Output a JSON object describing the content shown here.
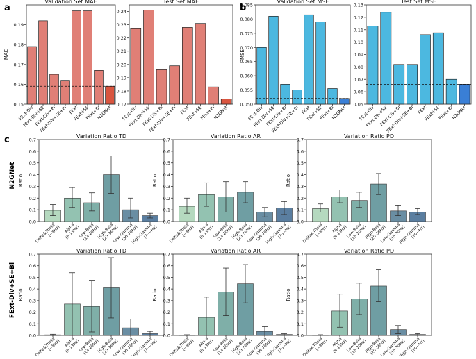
{
  "chart_data": [
    {
      "type": "bar",
      "panel": "a",
      "title": "Validation Set MAE",
      "ylabel": "MAE",
      "ylim": [
        0.15,
        0.2
      ],
      "yticks": [
        "0.15",
        "0.16",
        "0.17",
        "0.18",
        "0.19"
      ],
      "categories": [
        "FExt-Div",
        "FExt-Div+SE",
        "FExt-Div+Bi",
        "FExt-Div+SE+Bi",
        "FExt",
        "FExt+SE",
        "FExt+Bi",
        "N2GNet"
      ],
      "values": [
        0.179,
        0.192,
        0.165,
        0.162,
        0.197,
        0.197,
        0.167,
        0.159
      ],
      "reference_line": 0.159,
      "colors": [
        "#e07f76",
        "#e07f76",
        "#e07f76",
        "#e07f76",
        "#e07f76",
        "#e07f76",
        "#e07f76",
        "#d9553f"
      ]
    },
    {
      "type": "bar",
      "panel": "a",
      "title": "Test Set MAE",
      "ylim": [
        0.17,
        0.245
      ],
      "yticks": [
        "0.17",
        "0.18",
        "0.19",
        "0.20",
        "0.21",
        "0.22",
        "0.23",
        "0.24"
      ],
      "categories": [
        "FExt-Div",
        "FExt-Div+SE",
        "FExt-Div+Bi",
        "FExt-Div+SE+Bi",
        "FExt",
        "FExt+SE",
        "FExt+Bi",
        "N2GNet"
      ],
      "values": [
        0.227,
        0.241,
        0.196,
        0.199,
        0.228,
        0.231,
        0.183,
        0.174
      ],
      "reference_line": 0.174,
      "colors": [
        "#e07f76",
        "#e07f76",
        "#e07f76",
        "#e07f76",
        "#e07f76",
        "#e07f76",
        "#e07f76",
        "#d9553f"
      ]
    },
    {
      "type": "bar",
      "panel": "b",
      "title": "Validation Set MSE",
      "ylabel": "MSE",
      "ylim": [
        0.05,
        0.085
      ],
      "yticks": [
        "0.050",
        "0.055",
        "0.060",
        "0.065",
        "0.070",
        "0.075",
        "0.080",
        "0.085"
      ],
      "categories": [
        "FExt-Div",
        "FExt-Div+SE",
        "FExt-Div+Bi",
        "FExt-Div+SE+Bi",
        "FExt",
        "FExt+SE",
        "FExt+Bi",
        "N2GNet"
      ],
      "values": [
        0.07,
        0.081,
        0.057,
        0.055,
        0.0815,
        0.079,
        0.0555,
        0.052
      ],
      "reference_line": 0.052,
      "colors": [
        "#4cb8e0",
        "#4cb8e0",
        "#4cb8e0",
        "#4cb8e0",
        "#4cb8e0",
        "#4cb8e0",
        "#4cb8e0",
        "#3a7fd6"
      ]
    },
    {
      "type": "bar",
      "panel": "b",
      "title": "Test Set MSE",
      "ylim": [
        0.05,
        0.13
      ],
      "yticks": [
        "0.05",
        "0.06",
        "0.07",
        "0.08",
        "0.09",
        "0.10",
        "0.11",
        "0.12",
        "0.13"
      ],
      "categories": [
        "FExt-Div",
        "FExt-Div+SE",
        "FExt-Div+Bi",
        "FExt-Div+SE+Bi",
        "FExt",
        "FExt+SE",
        "FExt+Bi",
        "N2GNet"
      ],
      "values": [
        0.113,
        0.124,
        0.082,
        0.082,
        0.106,
        0.1075,
        0.07,
        0.066
      ],
      "reference_line": 0.066,
      "colors": [
        "#4cb8e0",
        "#4cb8e0",
        "#4cb8e0",
        "#4cb8e0",
        "#4cb8e0",
        "#4cb8e0",
        "#4cb8e0",
        "#3a7fd6"
      ]
    },
    {
      "type": "bar",
      "panel": "c",
      "row": "N2GNet",
      "title": "Variation Ratio TD",
      "ylabel": "Ratio",
      "ylim": [
        0,
        0.7
      ],
      "values": [
        0.095,
        0.2,
        0.16,
        0.4,
        0.1,
        0.05
      ],
      "errors": [
        [
          0.05,
          0.145
        ],
        [
          0.12,
          0.29
        ],
        [
          0.09,
          0.245
        ],
        [
          0.24,
          0.56
        ],
        [
          0.03,
          0.2
        ],
        [
          0.03,
          0.07
        ]
      ]
    },
    {
      "type": "bar",
      "panel": "c",
      "row": "N2GNet",
      "title": "Variation Ratio AR",
      "ylim": [
        0,
        0.7
      ],
      "values": [
        0.13,
        0.23,
        0.21,
        0.25,
        0.08,
        0.115
      ],
      "errors": [
        [
          0.07,
          0.2
        ],
        [
          0.13,
          0.33
        ],
        [
          0.08,
          0.34
        ],
        [
          0.16,
          0.34
        ],
        [
          0.04,
          0.12
        ],
        [
          0.06,
          0.17
        ]
      ]
    },
    {
      "type": "bar",
      "panel": "c",
      "row": "N2GNet",
      "title": "Variation Ratio PD",
      "ylim": [
        0,
        0.7
      ],
      "values": [
        0.11,
        0.21,
        0.18,
        0.32,
        0.09,
        0.08
      ],
      "errors": [
        [
          0.08,
          0.15
        ],
        [
          0.16,
          0.27
        ],
        [
          0.12,
          0.25
        ],
        [
          0.23,
          0.41
        ],
        [
          0.05,
          0.14
        ],
        [
          0.06,
          0.11
        ]
      ]
    },
    {
      "type": "bar",
      "panel": "c",
      "row": "FExt-Div+SE+Bi",
      "title": "Variation Ratio TD",
      "ylabel": "Ratio",
      "ylim": [
        0,
        0.7
      ],
      "values": [
        0.005,
        0.27,
        0.25,
        0.41,
        0.065,
        0.015
      ],
      "errors": [
        [
          0.0,
          0.01
        ],
        [
          0.0,
          0.54
        ],
        [
          0.03,
          0.475
        ],
        [
          0.15,
          0.67
        ],
        [
          0.0,
          0.14
        ],
        [
          0.0,
          0.035
        ]
      ]
    },
    {
      "type": "bar",
      "panel": "c",
      "row": "FExt-Div+SE+Bi",
      "title": "Variation Ratio AR",
      "ylim": [
        0,
        0.7
      ],
      "values": [
        0.003,
        0.155,
        0.375,
        0.445,
        0.035,
        0.008
      ],
      "errors": [
        [
          0.0,
          0.006
        ],
        [
          0.0,
          0.33
        ],
        [
          0.17,
          0.58
        ],
        [
          0.28,
          0.61
        ],
        [
          0.0,
          0.075
        ],
        [
          0.0,
          0.015
        ]
      ]
    },
    {
      "type": "bar",
      "panel": "c",
      "row": "FExt-Div+SE+Bi",
      "title": "Variation Ratio PD",
      "ylim": [
        0,
        0.7
      ],
      "values": [
        0.003,
        0.21,
        0.315,
        0.425,
        0.05,
        0.008
      ],
      "errors": [
        [
          0.0,
          0.006
        ],
        [
          0.07,
          0.355
        ],
        [
          0.18,
          0.45
        ],
        [
          0.29,
          0.565
        ],
        [
          0.015,
          0.085
        ],
        [
          0.0,
          0.015
        ]
      ]
    }
  ],
  "panel_letters": {
    "a": "a",
    "b": "b",
    "c": "c"
  },
  "row_labels": [
    "N2GNet",
    "FExt-Div+SE+Bi"
  ],
  "band_labels": [
    [
      "Delta&Theta",
      "(∼8Hz)"
    ],
    [
      "Alpha",
      "(8-13Hz)"
    ],
    [
      "Low-Beta",
      "(13-20Hz)"
    ],
    [
      "High-Beta",
      "(20-36Hz)"
    ],
    [
      "Low-Gamma",
      "(36-70Hz)"
    ],
    [
      "High-Gamma",
      "(70∼Hz)"
    ]
  ],
  "band_colors": [
    "#b5d9bf",
    "#93c2b1",
    "#7fafa8",
    "#6f9ea3",
    "#6a8ea3",
    "#5a7ea0"
  ],
  "ratio_yticks": [
    "0.0",
    "0.1",
    "0.2",
    "0.3",
    "0.4",
    "0.5",
    "0.6",
    "0.7"
  ]
}
